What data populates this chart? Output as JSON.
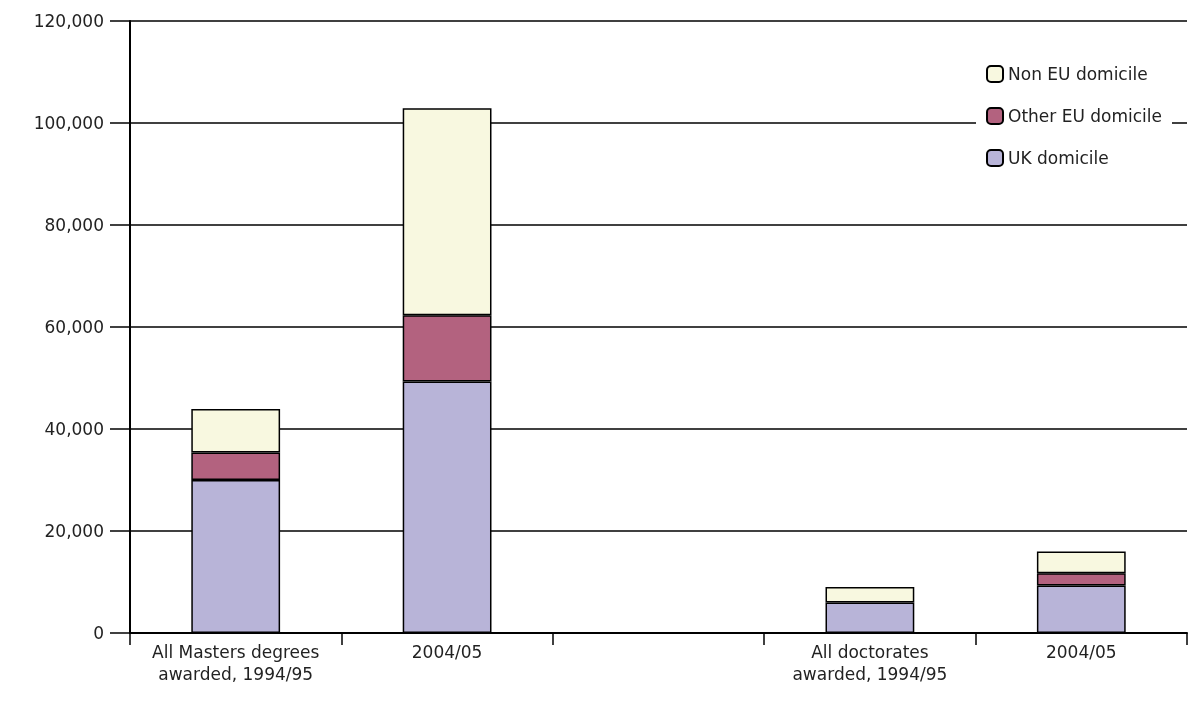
{
  "chart_data": {
    "type": "bar",
    "stacked": true,
    "categories": [
      "All Masters degrees\nawarded, 1994/95",
      "2004/05",
      null,
      "All doctorates\nawarded, 1994/95",
      "2004/05"
    ],
    "series": [
      {
        "name": "UK domicile",
        "color": "#b8b4d8",
        "values": [
          30000,
          49300,
          null,
          6000,
          9300
        ]
      },
      {
        "name": "Other EU domicile",
        "color": "#b3627f",
        "values": [
          5400,
          13000,
          null,
          null,
          2400
        ]
      },
      {
        "name": "Non EU domicile",
        "color": "#f8f8e0",
        "values": [
          8500,
          40600,
          null,
          3000,
          4300
        ]
      }
    ],
    "ylim": [
      0,
      120000
    ],
    "yticks": [
      {
        "value": 0,
        "label": "0"
      },
      {
        "value": 20000,
        "label": "20,000"
      },
      {
        "value": 40000,
        "label": "40,000"
      },
      {
        "value": 60000,
        "label": "60,000"
      },
      {
        "value": 80000,
        "label": "80,000"
      },
      {
        "value": 100000,
        "label": "100,000"
      },
      {
        "value": 120000,
        "label": "120,000"
      }
    ],
    "grid": "y",
    "legend": "top right"
  }
}
